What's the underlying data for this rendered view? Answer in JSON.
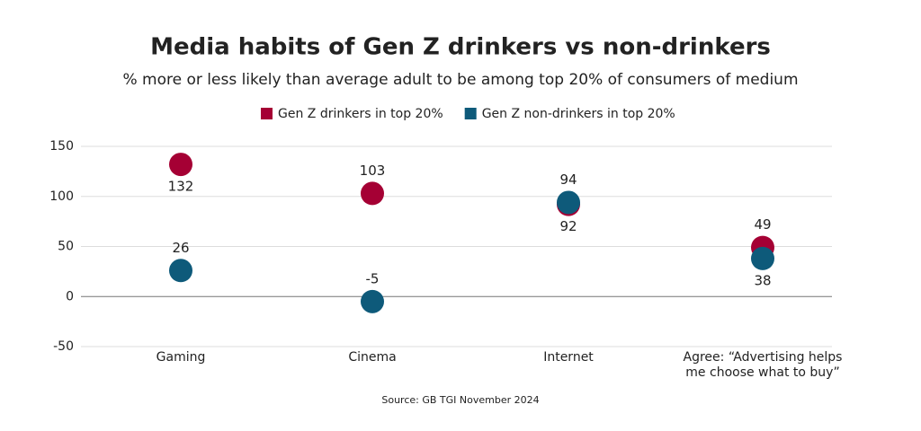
{
  "chart_data": {
    "type": "dot",
    "title": "Media habits of Gen Z drinkers vs non-drinkers",
    "subtitle": "% more or less likely than average adult to be among top 20% of consumers of medium",
    "categories": [
      "Gaming",
      "Cinema",
      "Internet",
      "Agree: “Advertising helps me choose what to buy”"
    ],
    "series": [
      {
        "name": "Gen Z drinkers in top 20%",
        "color": "#a50034",
        "values": [
          132,
          103,
          92,
          49
        ]
      },
      {
        "name": "Gen Z non-drinkers in top 20%",
        "color": "#0e5a7a",
        "values": [
          26,
          -5,
          94,
          38
        ]
      }
    ],
    "ylim": [
      -50,
      150
    ],
    "yticks": [
      -50,
      0,
      50,
      100,
      150
    ],
    "grid": true,
    "source": "Source: GB TGI November 2024"
  }
}
